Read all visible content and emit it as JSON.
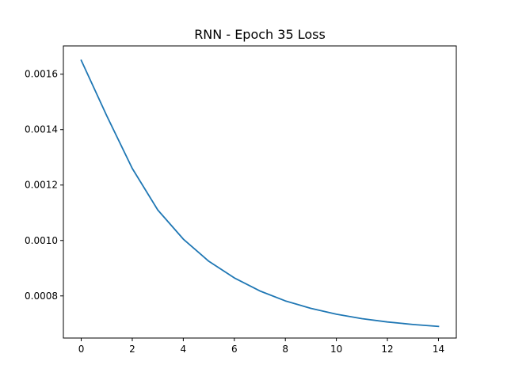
{
  "chart_data": {
    "type": "line",
    "title": "RNN - Epoch 35 Loss",
    "xlabel": "",
    "ylabel": "",
    "xlim": [
      -0.7,
      14.7
    ],
    "ylim": [
      0.000648,
      0.001702
    ],
    "xticks": [
      0,
      2,
      4,
      6,
      8,
      10,
      12,
      14
    ],
    "xtick_labels": [
      "0",
      "2",
      "4",
      "6",
      "8",
      "10",
      "12",
      "14"
    ],
    "yticks": [
      0.0008,
      0.001,
      0.0012,
      0.0014,
      0.0016
    ],
    "ytick_labels": [
      "0.0008",
      "0.0010",
      "0.0012",
      "0.0014",
      "0.0016"
    ],
    "grid": false,
    "legend": false,
    "series": [
      {
        "color": "#1f77b4",
        "x": [
          0,
          1,
          2,
          3,
          4,
          5,
          6,
          7,
          8,
          9,
          10,
          11,
          12,
          13,
          14
        ],
        "y": [
          0.00165,
          0.00145,
          0.00126,
          0.00111,
          0.001005,
          0.000925,
          0.000865,
          0.000818,
          0.000782,
          0.000755,
          0.000734,
          0.000718,
          0.000706,
          0.000697,
          0.00069
        ]
      }
    ]
  }
}
